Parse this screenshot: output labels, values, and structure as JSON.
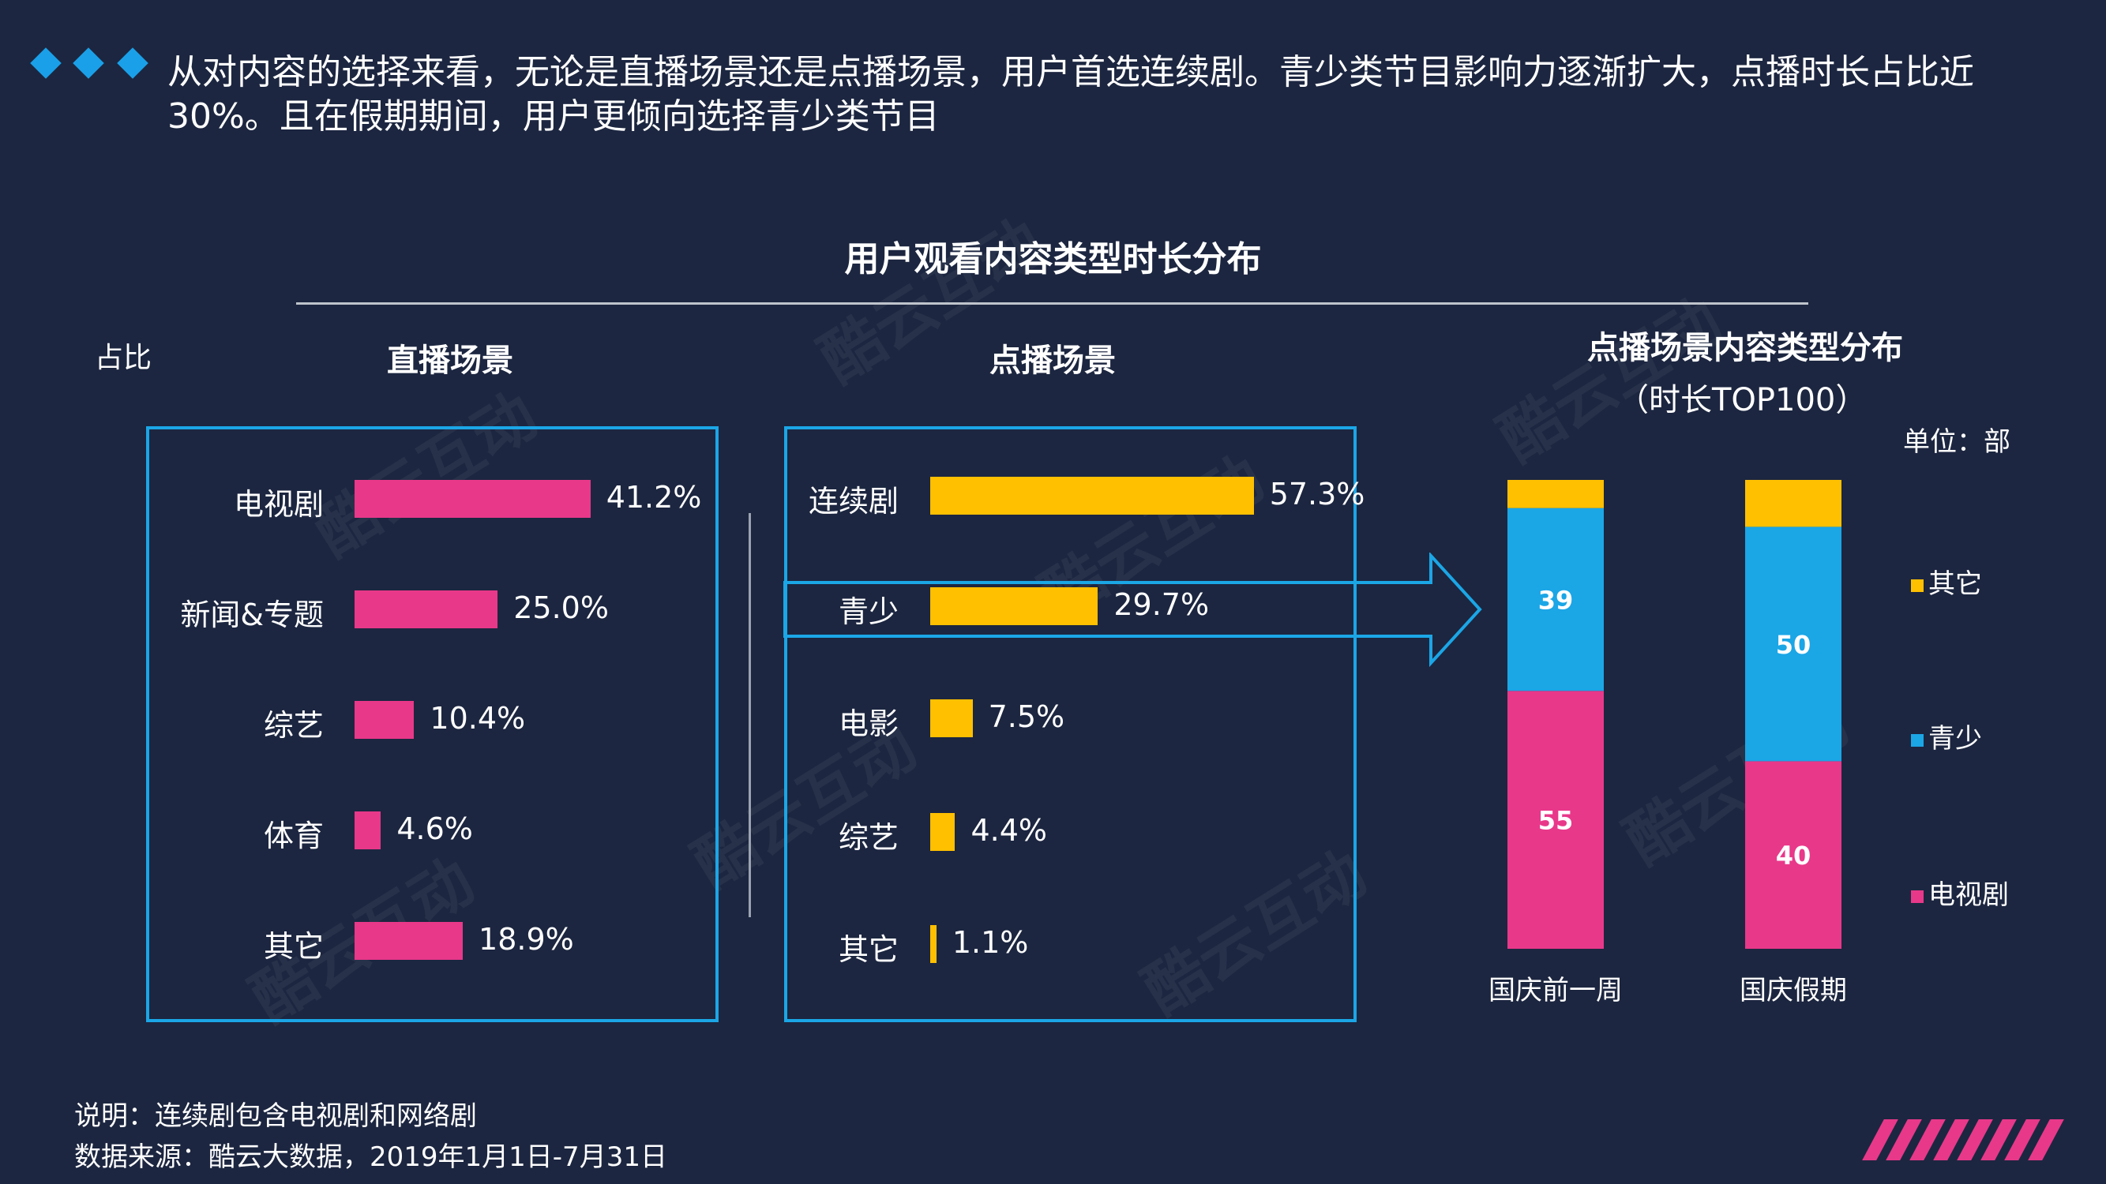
{
  "headline": "从对内容的选择来看，无论是直播场景还是点播场景，用户首选连续剧。青少类节目影响力逐渐扩大，点播时长占比近30%。且在假期期间，用户更倾向选择青少类节目",
  "watermark": "酷云互动",
  "colors": {
    "background": "#1c2640",
    "accent_blue": "#1ba6e6",
    "pink": "#e8388a",
    "yellow": "#ffc000"
  },
  "chart_data": [
    {
      "type": "bar",
      "orientation": "horizontal",
      "title": "直播场景",
      "group_title": "用户观看内容类型时长分布",
      "ylabel": "占比",
      "categories": [
        "电视剧",
        "新闻&专题",
        "综艺",
        "体育",
        "其它"
      ],
      "values": [
        41.2,
        25.0,
        10.4,
        4.6,
        18.9
      ],
      "value_labels": [
        "41.2%",
        "25.0%",
        "10.4%",
        "4.6%",
        "18.9%"
      ],
      "color": "#e8388a"
    },
    {
      "type": "bar",
      "orientation": "horizontal",
      "title": "点播场景",
      "categories": [
        "连续剧",
        "青少",
        "电影",
        "综艺",
        "其它"
      ],
      "values": [
        57.3,
        29.7,
        7.5,
        4.4,
        1.1
      ],
      "value_labels": [
        "57.3%",
        "29.7%",
        "7.5%",
        "4.4%",
        "1.1%"
      ],
      "highlight": "青少",
      "color": "#ffc000"
    },
    {
      "type": "bar",
      "stacked": true,
      "title": "点播场景内容类型分布",
      "subtitle": "（时长TOP100）",
      "unit": "单位：部",
      "categories": [
        "国庆前一周",
        "国庆假期"
      ],
      "series": [
        {
          "name": "电视剧",
          "values": [
            55,
            40
          ],
          "color": "#e8388a"
        },
        {
          "name": "青少",
          "values": [
            39,
            50
          ],
          "color": "#1ba6e6"
        },
        {
          "name": "其它",
          "values": [
            6,
            10
          ],
          "color": "#ffc000"
        }
      ],
      "legend_order": [
        "其它",
        "青少",
        "电视剧"
      ],
      "ylim": [
        0,
        100
      ]
    }
  ],
  "footer": {
    "note": "说明：连续剧包含电视剧和网络剧",
    "source": "数据来源：酷云大数据，2019年1月1日-7月31日"
  }
}
